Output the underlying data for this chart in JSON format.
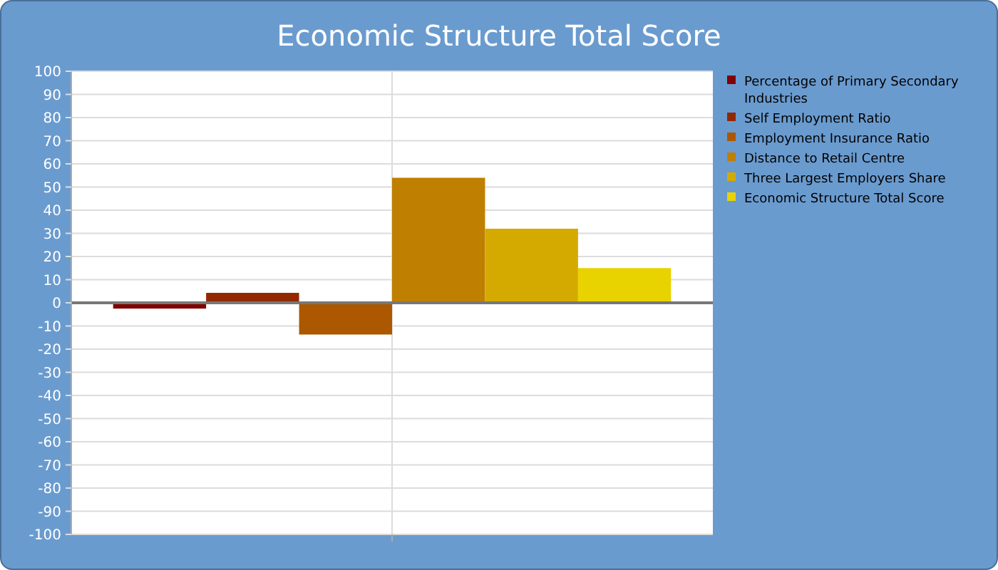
{
  "chart_data": {
    "type": "bar",
    "title": "Economic Structure Total Score",
    "categories": [
      null
    ],
    "series": [
      {
        "name": "Percentage of Primary Secondary Industries",
        "color": "#800000",
        "values": [
          -2.5
        ]
      },
      {
        "name": "Self Employment Ratio",
        "color": "#922800",
        "values": [
          4.3
        ]
      },
      {
        "name": "Employment Insurance Ratio",
        "color": "#ab5800",
        "values": [
          -13.7
        ]
      },
      {
        "name": "Distance to Retail Centre",
        "color": "#bf7f00",
        "values": [
          54
        ]
      },
      {
        "name": "Three Largest Employers Share",
        "color": "#d4aa00",
        "values": [
          32
        ]
      },
      {
        "name": "Economic Structure Total Score",
        "color": "#e8d200",
        "values": [
          15
        ]
      }
    ],
    "ylim": [
      -100,
      100
    ],
    "yticks": [
      -100,
      -90,
      -80,
      -70,
      -60,
      -50,
      -40,
      -30,
      -20,
      -10,
      0,
      10,
      20,
      30,
      40,
      50,
      60,
      70,
      80,
      90,
      100
    ],
    "grid": true,
    "legend": "right"
  }
}
